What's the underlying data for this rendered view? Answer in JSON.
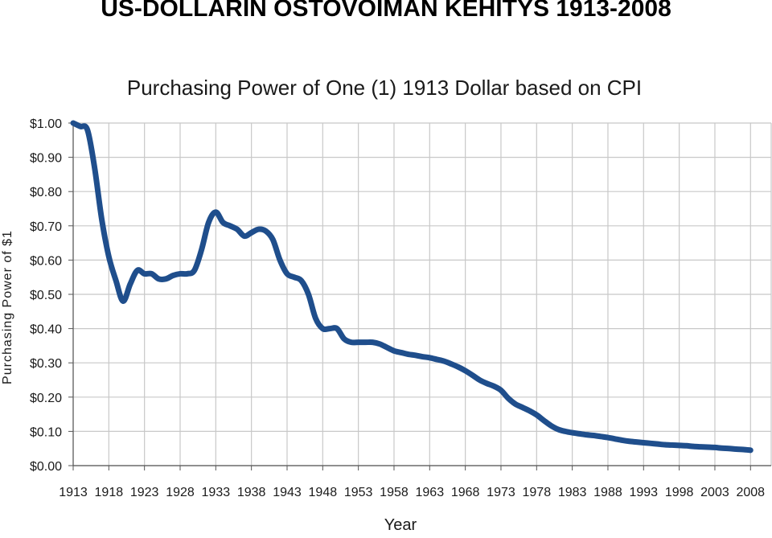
{
  "page": {
    "title": "US-DOLLARIN OSTOVOIMAN KEHITYS 1913-2008"
  },
  "colors": {
    "line": "#1f4e8c",
    "grid": "#c8c8c8",
    "axis": "#555555",
    "text": "#1a1a1a"
  },
  "chart_data": {
    "type": "line",
    "title": "Purchasing Power of One (1) 1913 Dollar based on CPI",
    "xlabel": "Year",
    "ylabel": "Purchasing Power of $1",
    "xlim": [
      1913,
      2008
    ],
    "ylim": [
      0,
      1.0
    ],
    "grid": true,
    "legend": "none",
    "x_tick_labels": [
      "1913",
      "1918",
      "1923",
      "1928",
      "1933",
      "1938",
      "1943",
      "1948",
      "1953",
      "1958",
      "1963",
      "1968",
      "1973",
      "1978",
      "1983",
      "1988",
      "1993",
      "1998",
      "2003",
      "2008"
    ],
    "y_tick_labels": [
      "$0.00",
      "$0.10",
      "$0.20",
      "$0.30",
      "$0.40",
      "$0.50",
      "$0.60",
      "$0.70",
      "$0.80",
      "$0.90",
      "$1.00"
    ],
    "series": [
      {
        "x": [
          1913,
          1914,
          1915,
          1916,
          1917,
          1918,
          1919,
          1920,
          1921,
          1922,
          1923,
          1924,
          1925,
          1926,
          1927,
          1928,
          1929,
          1930,
          1931,
          1932,
          1933,
          1934,
          1935,
          1936,
          1937,
          1938,
          1939,
          1940,
          1941,
          1942,
          1943,
          1944,
          1945,
          1946,
          1947,
          1948,
          1949,
          1950,
          1951,
          1952,
          1953,
          1954,
          1955,
          1956,
          1957,
          1958,
          1959,
          1960,
          1961,
          1962,
          1963,
          1964,
          1965,
          1966,
          1967,
          1968,
          1969,
          1970,
          1971,
          1972,
          1973,
          1974,
          1975,
          1976,
          1977,
          1978,
          1979,
          1980,
          1981,
          1982,
          1983,
          1984,
          1985,
          1986,
          1987,
          1988,
          1989,
          1990,
          1991,
          1992,
          1993,
          1994,
          1995,
          1996,
          1997,
          1998,
          1999,
          2000,
          2001,
          2002,
          2003,
          2004,
          2005,
          2006,
          2007,
          2008
        ],
        "values": [
          1.0,
          0.99,
          0.98,
          0.87,
          0.72,
          0.61,
          0.54,
          0.48,
          0.53,
          0.57,
          0.56,
          0.56,
          0.545,
          0.545,
          0.555,
          0.56,
          0.56,
          0.57,
          0.63,
          0.71,
          0.74,
          0.71,
          0.7,
          0.69,
          0.67,
          0.68,
          0.69,
          0.685,
          0.66,
          0.6,
          0.56,
          0.55,
          0.54,
          0.5,
          0.43,
          0.4,
          0.4,
          0.4,
          0.37,
          0.36,
          0.36,
          0.36,
          0.36,
          0.355,
          0.345,
          0.335,
          0.33,
          0.325,
          0.322,
          0.318,
          0.315,
          0.31,
          0.305,
          0.297,
          0.288,
          0.277,
          0.264,
          0.25,
          0.24,
          0.232,
          0.22,
          0.197,
          0.18,
          0.17,
          0.16,
          0.148,
          0.132,
          0.117,
          0.106,
          0.1,
          0.096,
          0.093,
          0.09,
          0.088,
          0.085,
          0.082,
          0.078,
          0.074,
          0.071,
          0.069,
          0.067,
          0.065,
          0.063,
          0.061,
          0.06,
          0.059,
          0.058,
          0.056,
          0.055,
          0.054,
          0.053,
          0.051,
          0.05,
          0.048,
          0.047,
          0.045
        ]
      }
    ]
  }
}
